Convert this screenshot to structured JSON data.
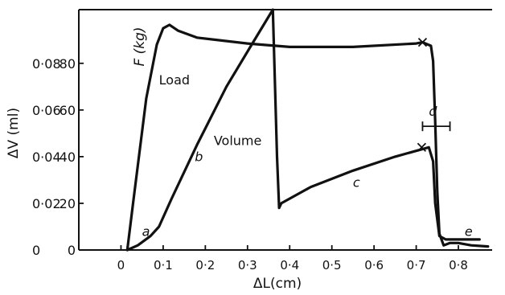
{
  "chart_data": {
    "type": "line",
    "xlabel": "ΔL(cm)",
    "ylabel_inner": "F (kg)",
    "ylabel_outer": "ΔV (ml)",
    "xlim": [
      -0.1,
      0.88
    ],
    "ylim": [
      0,
      1.03
    ],
    "x_ticks": [
      {
        "v": 0,
        "label": "0"
      },
      {
        "v": 0.1,
        "label": "0·1"
      },
      {
        "v": 0.2,
        "label": "0·2"
      },
      {
        "v": 0.3,
        "label": "0·3"
      },
      {
        "v": 0.4,
        "label": "0·4"
      },
      {
        "v": 0.5,
        "label": "0·5"
      },
      {
        "v": 0.6,
        "label": "0·6"
      },
      {
        "v": 0.7,
        "label": "0·7"
      },
      {
        "v": 0.8,
        "label": "0·8"
      }
    ],
    "y_ticks_volume": [
      {
        "v": 0,
        "label": "0"
      },
      {
        "v": 0.2,
        "label": "0·02"
      },
      {
        "v": 0.4,
        "label": "0·04"
      },
      {
        "v": 0.6,
        "label": "0·06"
      },
      {
        "v": 0.8,
        "label": "0·08"
      }
    ],
    "y_ticks_load": [
      {
        "v": 0,
        "label": "0"
      },
      {
        "v": 0.2,
        "label": "20"
      },
      {
        "v": 0.4,
        "label": "40"
      },
      {
        "v": 0.6,
        "label": "60"
      },
      {
        "v": 0.8,
        "label": "80"
      }
    ],
    "series": [
      {
        "name": "Load",
        "points": [
          [
            0.015,
            0
          ],
          [
            0.03,
            0.22
          ],
          [
            0.06,
            0.65
          ],
          [
            0.085,
            0.88
          ],
          [
            0.1,
            0.95
          ],
          [
            0.115,
            0.965
          ],
          [
            0.135,
            0.94
          ],
          [
            0.18,
            0.91
          ],
          [
            0.3,
            0.885
          ],
          [
            0.4,
            0.87
          ],
          [
            0.55,
            0.87
          ],
          [
            0.7,
            0.885
          ],
          [
            0.715,
            0.89
          ],
          [
            0.735,
            0.875
          ],
          [
            0.74,
            0.81
          ],
          [
            0.745,
            0.55
          ],
          [
            0.75,
            0.25
          ],
          [
            0.755,
            0.07
          ],
          [
            0.765,
            0.02
          ],
          [
            0.78,
            0.03
          ],
          [
            0.8,
            0.03
          ],
          [
            0.83,
            0.02
          ],
          [
            0.87,
            0.015
          ]
        ]
      },
      {
        "name": "Volume",
        "points": [
          [
            0.015,
            0
          ],
          [
            0.04,
            0.02
          ],
          [
            0.07,
            0.06
          ],
          [
            0.09,
            0.1
          ],
          [
            0.12,
            0.22
          ],
          [
            0.18,
            0.45
          ],
          [
            0.25,
            0.7
          ],
          [
            0.31,
            0.88
          ],
          [
            0.36,
            1.03
          ],
          [
            0.37,
            0.4
          ],
          [
            0.375,
            0.18
          ],
          [
            0.38,
            0.2
          ],
          [
            0.39,
            0.21
          ],
          [
            0.45,
            0.27
          ],
          [
            0.55,
            0.34
          ],
          [
            0.65,
            0.4
          ],
          [
            0.71,
            0.43
          ],
          [
            0.73,
            0.44
          ],
          [
            0.74,
            0.38
          ],
          [
            0.745,
            0.2
          ],
          [
            0.755,
            0.06
          ],
          [
            0.77,
            0.045
          ],
          [
            0.8,
            0.045
          ],
          [
            0.85,
            0.045
          ]
        ]
      }
    ],
    "markers": [
      {
        "type": "x",
        "x": 0.715,
        "y": 0.89
      },
      {
        "type": "x",
        "x": 0.713,
        "y": 0.44
      }
    ],
    "error_bar": {
      "y": 0.53,
      "x_min": 0.715,
      "x_max": 0.78
    },
    "curve_labels": [
      {
        "text": "Load",
        "x": 0.09,
        "y": 0.71
      },
      {
        "text": "Volume",
        "x": 0.22,
        "y": 0.45
      }
    ],
    "letters": [
      {
        "text": "a",
        "x": 0.05,
        "y": 0.06
      },
      {
        "text": "b",
        "x": 0.175,
        "y": 0.38
      },
      {
        "text": "c",
        "x": 0.55,
        "y": 0.27
      },
      {
        "text": "d",
        "x": 0.73,
        "y": 0.575
      },
      {
        "text": "e",
        "x": 0.815,
        "y": 0.06
      }
    ]
  }
}
